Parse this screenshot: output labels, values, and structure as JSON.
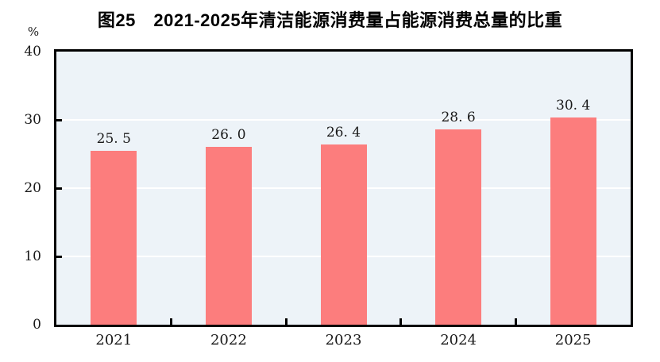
{
  "figure": {
    "title": "图25　2021-2025年清洁能源消费量占能源消费总量的比重",
    "unit_label": "%"
  },
  "chart_data": {
    "type": "bar",
    "title": "图25　2021-2025年清洁能源消费量占能源消费总量的比重",
    "categories": [
      "2021",
      "2022",
      "2023",
      "2024",
      "2025"
    ],
    "values": [
      25.5,
      26.0,
      26.4,
      28.6,
      30.4
    ],
    "value_labels": [
      "25. 5",
      "26. 0",
      "26. 4",
      "28. 6",
      "30. 4"
    ],
    "xlabel": "",
    "ylabel": "%",
    "ylim": [
      0,
      40
    ],
    "yticks": [
      0,
      10,
      20,
      30,
      40
    ],
    "legend": "none",
    "grid": true,
    "grid_color": "#FFFFFF",
    "bar_color": "#FC7D7D",
    "plot_background": "#EDF3F8",
    "frame_color": "#000000",
    "label_color": "#1A1A1A"
  }
}
